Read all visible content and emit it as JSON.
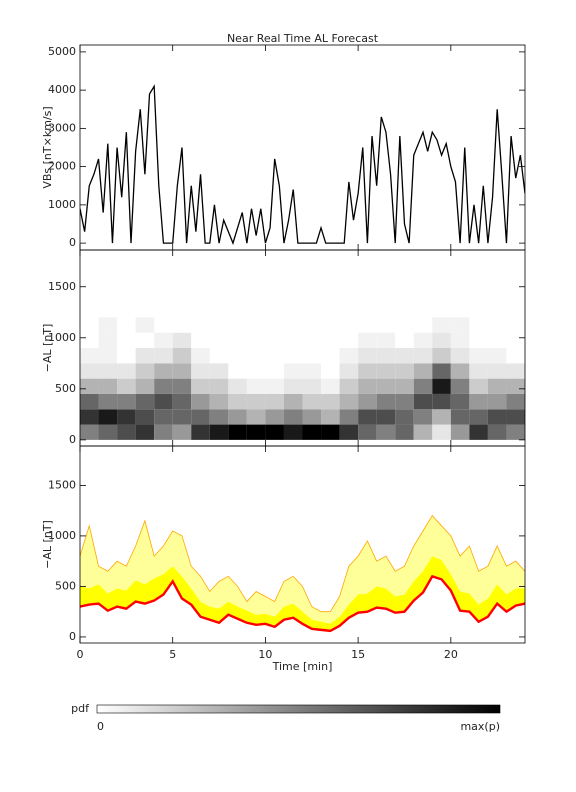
{
  "chart_data": [
    {
      "type": "line",
      "title": "Near Real Time AL Forecast",
      "ylabel": "VBs [nT×km/s]",
      "color": "#000000",
      "xlim": [
        0,
        24
      ],
      "xticks": [
        0,
        5,
        10,
        15,
        20
      ],
      "ylim": [
        -180,
        5180
      ],
      "yticks": [
        0,
        1000,
        2000,
        3000,
        4000,
        5000
      ],
      "x": [
        0,
        0.25,
        0.5,
        0.75,
        1,
        1.25,
        1.5,
        1.75,
        2,
        2.25,
        2.5,
        2.75,
        3,
        3.25,
        3.5,
        3.75,
        4,
        4.25,
        4.5,
        4.75,
        5,
        5.25,
        5.5,
        5.75,
        6,
        6.25,
        6.5,
        6.75,
        7,
        7.25,
        7.5,
        7.75,
        8,
        8.25,
        8.5,
        8.75,
        9,
        9.25,
        9.5,
        9.75,
        10,
        10.25,
        10.5,
        10.75,
        11,
        11.25,
        11.5,
        11.75,
        12,
        12.25,
        12.5,
        12.75,
        13,
        13.25,
        13.5,
        13.75,
        14,
        14.25,
        14.5,
        14.75,
        15,
        15.25,
        15.5,
        15.75,
        16,
        16.25,
        16.5,
        16.75,
        17,
        17.25,
        17.5,
        17.75,
        18,
        18.25,
        18.5,
        18.75,
        19,
        19.25,
        19.5,
        19.75,
        20,
        20.25,
        20.5,
        20.75,
        21,
        21.25,
        21.5,
        21.75,
        22,
        22.25,
        22.5,
        22.75,
        23,
        23.25,
        23.5,
        23.75,
        24
      ],
      "values": [
        900,
        300,
        1500,
        1800,
        2200,
        800,
        2600,
        0,
        2500,
        1200,
        2900,
        0,
        2400,
        3500,
        1800,
        3900,
        4100,
        1500,
        0,
        0,
        0,
        1500,
        2500,
        0,
        1500,
        300,
        1800,
        0,
        0,
        1000,
        0,
        600,
        300,
        0,
        400,
        800,
        0,
        900,
        200,
        900,
        0,
        400,
        2200,
        1500,
        0,
        600,
        1400,
        0,
        0,
        0,
        0,
        0,
        400,
        0,
        0,
        0,
        0,
        0,
        1600,
        600,
        1300,
        2500,
        0,
        2800,
        1500,
        3300,
        2900,
        1800,
        0,
        2800,
        500,
        0,
        2300,
        2600,
        2900,
        2400,
        2900,
        2700,
        2300,
        2600,
        2000,
        1600,
        0,
        2500,
        0,
        1000,
        0,
        1500,
        0,
        1200,
        3500,
        1800,
        0,
        2800,
        1700,
        2300,
        1300
      ]
    },
    {
      "type": "heatmap",
      "ylabel": "−AL [nT]",
      "xlim": [
        0,
        24
      ],
      "xticks": [
        0,
        5,
        10,
        15,
        20
      ],
      "ylim": [
        -60,
        1860
      ],
      "yticks": [
        0,
        500,
        1000,
        1500
      ],
      "xbins": [
        0,
        1,
        2,
        3,
        4,
        5,
        6,
        7,
        8,
        9,
        10,
        11,
        12,
        13,
        14,
        15,
        16,
        17,
        18,
        19,
        20,
        21,
        22,
        23,
        24
      ],
      "ybins": [
        0,
        150,
        300,
        450,
        600,
        750,
        900,
        1050,
        1200
      ],
      "z": [
        [
          0.5,
          0.8,
          0.6,
          0.3,
          0.1,
          0.05,
          0,
          0
        ],
        [
          0.6,
          0.9,
          0.5,
          0.3,
          0.1,
          0.05,
          0.05,
          0.05
        ],
        [
          0.7,
          0.8,
          0.5,
          0.2,
          0.1,
          0,
          0,
          0
        ],
        [
          0.8,
          0.7,
          0.6,
          0.3,
          0.2,
          0.1,
          0,
          0.05
        ],
        [
          0.5,
          0.6,
          0.7,
          0.5,
          0.3,
          0.1,
          0.05,
          0
        ],
        [
          0.4,
          0.6,
          0.6,
          0.5,
          0.3,
          0.2,
          0.1,
          0
        ],
        [
          0.8,
          0.6,
          0.4,
          0.2,
          0.1,
          0.05,
          0,
          0
        ],
        [
          0.9,
          0.5,
          0.3,
          0.2,
          0.1,
          0,
          0,
          0
        ],
        [
          1,
          0.4,
          0.2,
          0.1,
          0,
          0,
          0,
          0
        ],
        [
          1,
          0.3,
          0.2,
          0.05,
          0,
          0,
          0,
          0
        ],
        [
          1,
          0.4,
          0.2,
          0.05,
          0,
          0,
          0,
          0
        ],
        [
          0.9,
          0.5,
          0.3,
          0.1,
          0.05,
          0,
          0,
          0
        ],
        [
          1,
          0.4,
          0.2,
          0.1,
          0.05,
          0,
          0,
          0
        ],
        [
          1,
          0.3,
          0.2,
          0.05,
          0,
          0,
          0,
          0
        ],
        [
          0.8,
          0.5,
          0.3,
          0.2,
          0.1,
          0.05,
          0,
          0
        ],
        [
          0.6,
          0.7,
          0.4,
          0.3,
          0.2,
          0.1,
          0.05,
          0
        ],
        [
          0.5,
          0.7,
          0.5,
          0.3,
          0.2,
          0.1,
          0.05,
          0
        ],
        [
          0.6,
          0.6,
          0.5,
          0.3,
          0.2,
          0.1,
          0,
          0
        ],
        [
          0.3,
          0.5,
          0.7,
          0.5,
          0.3,
          0.1,
          0.05,
          0
        ],
        [
          0.1,
          0.3,
          0.7,
          0.9,
          0.6,
          0.2,
          0.1,
          0.05
        ],
        [
          0.4,
          0.6,
          0.6,
          0.5,
          0.3,
          0.1,
          0.05,
          0.05
        ],
        [
          0.8,
          0.6,
          0.4,
          0.2,
          0.1,
          0.05,
          0,
          0
        ],
        [
          0.6,
          0.7,
          0.4,
          0.3,
          0.1,
          0.05,
          0,
          0
        ],
        [
          0.5,
          0.7,
          0.5,
          0.3,
          0.1,
          0,
          0,
          0
        ]
      ],
      "zlim": [
        0,
        1
      ],
      "colorbar": {
        "title": "pdf",
        "zticks": [
          0,
          {
            "value": 1,
            "label": "max(p)"
          }
        ]
      }
    },
    {
      "type": "band",
      "ylabel": "−AL [nT]",
      "xlabel": "Time [min]",
      "xlim": [
        0,
        24
      ],
      "xticks": [
        0,
        5,
        10,
        15,
        20
      ],
      "ylim": [
        -60,
        1890
      ],
      "yticks": [
        0,
        500,
        1000,
        1500
      ],
      "x": [
        0,
        0.5,
        1,
        1.5,
        2,
        2.5,
        3,
        3.5,
        4,
        4.5,
        5,
        5.5,
        6,
        6.5,
        7,
        7.5,
        8,
        8.5,
        9,
        9.5,
        10,
        10.5,
        11,
        11.5,
        12,
        12.5,
        13,
        13.5,
        14,
        14.5,
        15,
        15.5,
        16,
        16.5,
        17,
        17.5,
        18,
        18.5,
        19,
        19.5,
        20,
        20.5,
        21,
        21.5,
        22,
        22.5,
        23,
        23.5,
        24
      ],
      "series": [
        {
          "color": "#ff0000",
          "values": [
            300,
            320,
            330,
            260,
            300,
            280,
            350,
            330,
            360,
            420,
            550,
            380,
            320,
            200,
            170,
            140,
            220,
            180,
            140,
            120,
            130,
            100,
            170,
            190,
            130,
            80,
            70,
            60,
            110,
            190,
            240,
            250,
            290,
            280,
            240,
            250,
            360,
            440,
            600,
            570,
            460,
            260,
            250,
            150,
            200,
            330,
            250,
            310,
            330
          ]
        },
        {
          "color": "#ffff00",
          "values": [
            500,
            480,
            520,
            430,
            480,
            460,
            560,
            520,
            580,
            620,
            700,
            600,
            480,
            350,
            300,
            280,
            350,
            300,
            260,
            220,
            230,
            200,
            300,
            330,
            250,
            170,
            150,
            130,
            200,
            320,
            420,
            430,
            500,
            480,
            400,
            420,
            550,
            650,
            800,
            760,
            620,
            450,
            430,
            320,
            380,
            520,
            420,
            480,
            480
          ]
        },
        {
          "color": "#ffff99",
          "edge_color": "#ffa500",
          "values": [
            800,
            1100,
            700,
            650,
            750,
            700,
            900,
            1150,
            800,
            900,
            1050,
            1000,
            700,
            600,
            450,
            550,
            600,
            500,
            350,
            450,
            400,
            350,
            550,
            600,
            500,
            300,
            250,
            250,
            400,
            700,
            800,
            950,
            750,
            800,
            650,
            700,
            900,
            1050,
            1200,
            1100,
            1000,
            800,
            900,
            650,
            700,
            900,
            700,
            750,
            650
          ]
        }
      ]
    }
  ]
}
